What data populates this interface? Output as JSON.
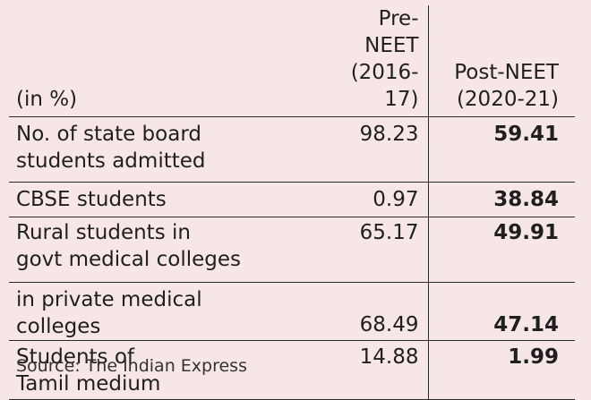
{
  "table": {
    "unit_label": "(in %)",
    "columns": [
      {
        "line1": "Pre-NEET",
        "line2": "(2016-17)"
      },
      {
        "line1": "Post-NEET",
        "line2": "(2020-21)"
      }
    ],
    "rows": [
      {
        "label_lines": [
          "No. of state board",
          "students admitted"
        ],
        "pre": "98.23",
        "post": "59.41"
      },
      {
        "label_lines": [
          "CBSE students"
        ],
        "pre": "0.97",
        "post": "38.84"
      },
      {
        "label_lines": [
          "Rural students in",
          "govt medical colleges"
        ],
        "pre": "65.17",
        "post": "49.91"
      },
      {
        "label_lines": [
          "in private medical",
          "colleges"
        ],
        "pre": "68.49",
        "post": "47.14"
      },
      {
        "label_lines": [
          "Students of",
          "Tamil medium"
        ],
        "pre": "14.88",
        "post": "1.99"
      }
    ]
  },
  "source": "Source: The Indian Express"
}
